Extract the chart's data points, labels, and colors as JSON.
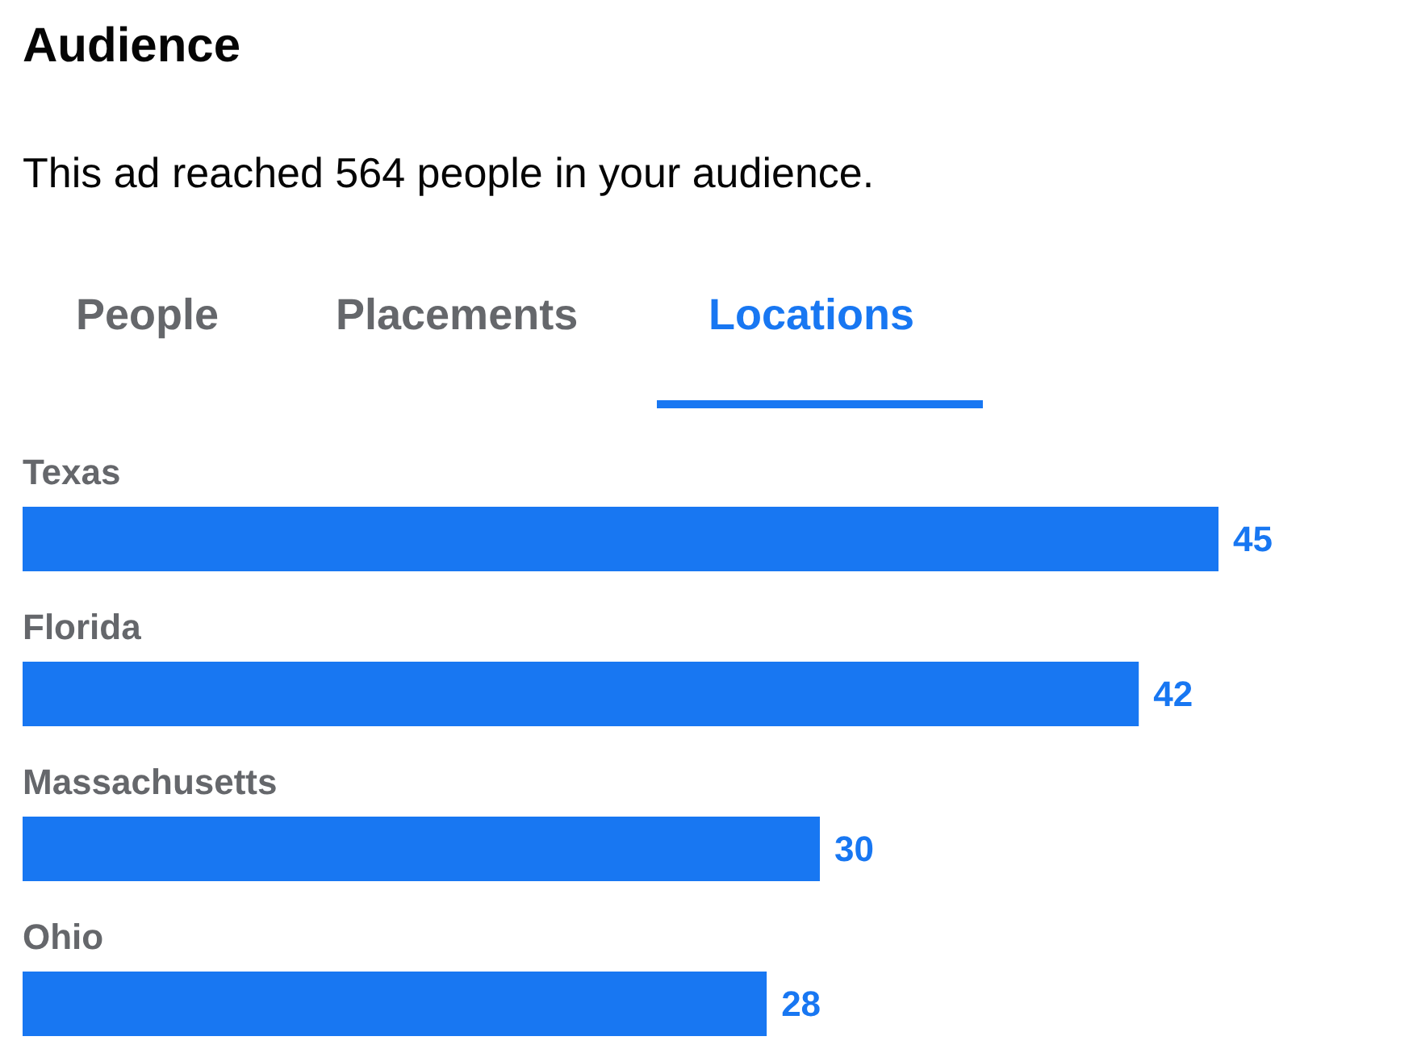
{
  "chart_data": {
    "type": "bar",
    "orientation": "horizontal",
    "title": "Audience",
    "subtitle": "This ad reached 564 people in your audience.",
    "annotations": [
      "People",
      "Placements",
      "Locations"
    ],
    "categories": [
      "Texas",
      "Florida",
      "Massachusetts",
      "Ohio"
    ],
    "values": [
      45,
      42,
      30,
      28
    ],
    "color": "#1877f2",
    "data_labels": true
  }
}
